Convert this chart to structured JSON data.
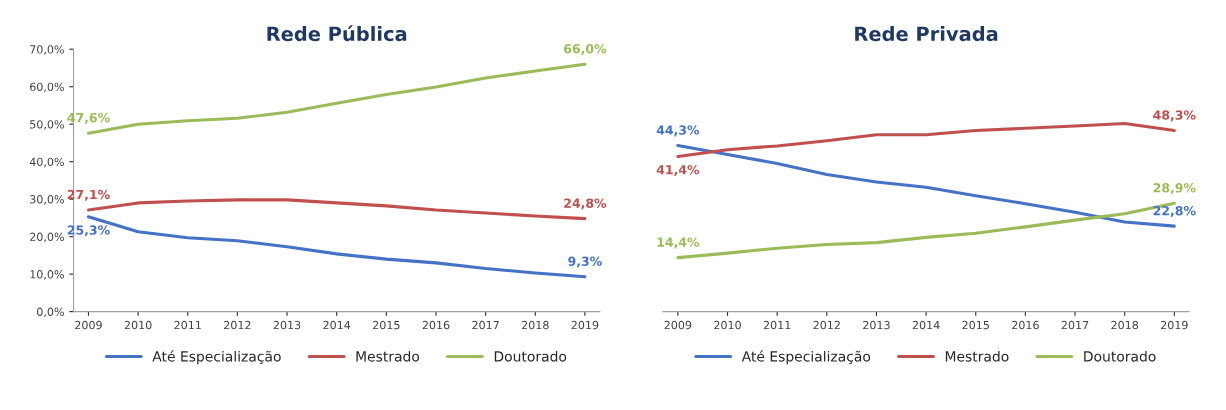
{
  "chart_data": [
    {
      "type": "line",
      "title": "Rede Pública",
      "categories": [
        "2009",
        "2010",
        "2011",
        "2012",
        "2013",
        "2014",
        "2015",
        "2016",
        "2017",
        "2018",
        "2019"
      ],
      "ylim": [
        0,
        70
      ],
      "yticks": [
        {
          "value": 0,
          "label": "0,0%"
        },
        {
          "value": 10,
          "label": "10,0%"
        },
        {
          "value": 20,
          "label": "20,0%"
        },
        {
          "value": 30,
          "label": "30,0%"
        },
        {
          "value": 40,
          "label": "40,0%"
        },
        {
          "value": 50,
          "label": "50,0%"
        },
        {
          "value": 60,
          "label": "60,0%"
        },
        {
          "value": 70,
          "label": "70,0%"
        }
      ],
      "grid": false,
      "legend": "bottom",
      "marker": "none",
      "line_style": "solid",
      "series": [
        {
          "name": "Até Especialização",
          "color": "#4472c4",
          "values": [
            25.3,
            21.3,
            19.7,
            18.9,
            17.3,
            15.4,
            14.0,
            13.0,
            11.5,
            10.3,
            9.3
          ],
          "value_labels": [
            "25,3%",
            null,
            null,
            null,
            null,
            null,
            null,
            null,
            null,
            null,
            "9,3%"
          ]
        },
        {
          "name": "Mestrado",
          "color": "#c0504d",
          "values": [
            27.1,
            29.0,
            29.5,
            29.8,
            29.8,
            29.0,
            28.2,
            27.1,
            26.3,
            25.5,
            24.8
          ],
          "value_labels": [
            "27,1%",
            null,
            null,
            null,
            null,
            null,
            null,
            null,
            null,
            null,
            "24,8%"
          ]
        },
        {
          "name": "Doutorado",
          "color": "#9bbb59",
          "values": [
            47.6,
            50.0,
            50.9,
            51.6,
            53.2,
            55.6,
            57.9,
            59.9,
            62.3,
            64.2,
            66.0
          ],
          "value_labels": [
            "47,6%",
            null,
            null,
            null,
            null,
            null,
            null,
            null,
            null,
            null,
            "66,0%"
          ]
        }
      ]
    },
    {
      "type": "line",
      "title": "Rede Privada",
      "categories": [
        "2009",
        "2010",
        "2011",
        "2012",
        "2013",
        "2014",
        "2015",
        "2016",
        "2017",
        "2018",
        "2019"
      ],
      "ylim": [
        0,
        70
      ],
      "tick_labels": "x",
      "grid": false,
      "legend": "bottom",
      "marker": "none",
      "line_style": "solid",
      "series": [
        {
          "name": "Até Especialização",
          "color": "#4472c4",
          "values": [
            44.3,
            41.9,
            39.5,
            36.6,
            34.6,
            33.2,
            30.9,
            28.8,
            26.5,
            23.9,
            22.8
          ],
          "value_labels": [
            "44,3%",
            null,
            null,
            null,
            null,
            null,
            null,
            null,
            null,
            null,
            "22,8%"
          ]
        },
        {
          "name": "Mestrado",
          "color": "#c0504d",
          "values": [
            41.4,
            43.2,
            44.2,
            45.6,
            47.2,
            47.2,
            48.3,
            48.9,
            49.5,
            50.2,
            48.3
          ],
          "value_labels": [
            "41,4%",
            null,
            null,
            null,
            null,
            null,
            null,
            null,
            null,
            null,
            "48,3%"
          ]
        },
        {
          "name": "Doutorado",
          "color": "#9bbb59",
          "values": [
            14.4,
            15.6,
            16.9,
            17.9,
            18.4,
            19.8,
            20.9,
            22.6,
            24.4,
            26.1,
            28.9
          ],
          "value_labels": [
            "14,4%",
            null,
            null,
            null,
            null,
            null,
            null,
            null,
            null,
            null,
            "28,9%"
          ]
        }
      ]
    }
  ]
}
